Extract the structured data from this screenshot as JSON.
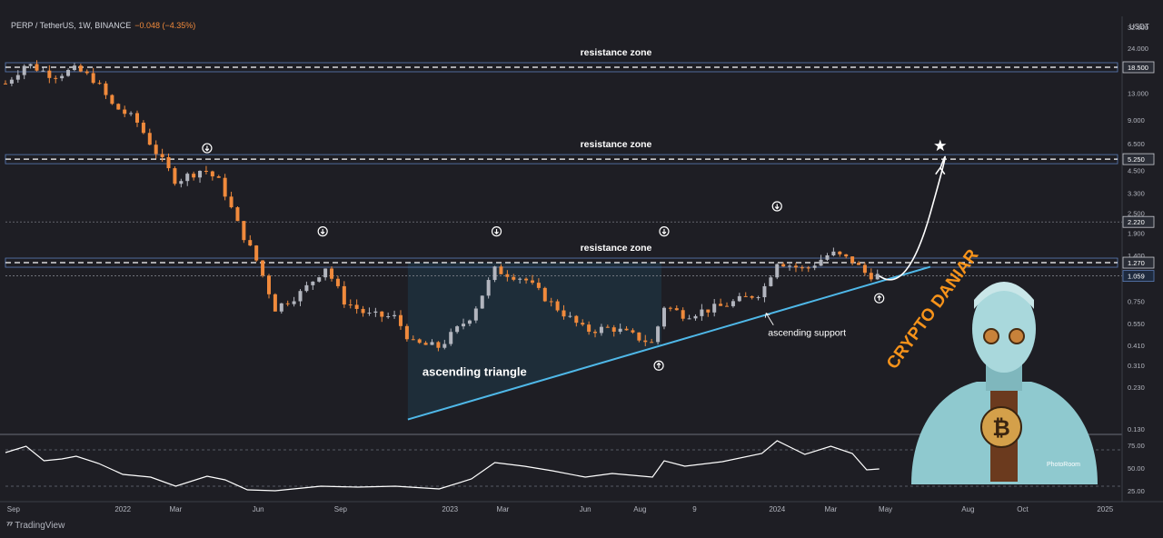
{
  "header": {
    "symbol": "PERP / TetherUS, 1W, BINANCE",
    "change": "−0.048 (−4.35%)"
  },
  "currency": "USDT",
  "branding": {
    "tradingview": "TradingView",
    "logo_icon": "tradingview-logo-icon",
    "author": "CRYPTO DANIAR",
    "watermark": "PhotoRoom"
  },
  "colors": {
    "background": "#1e1e24",
    "up_candle": "#b2b5be",
    "down_candle": "#f08a3c",
    "trendline": "#4fb8e8",
    "zone_line": "#ffffff",
    "triangle_fill": "#1f3a4a"
  },
  "chart_data": {
    "type": "candlestick",
    "scale": "log",
    "ylim": [
      0.13,
      32
    ],
    "xlim": [
      "2021-08-23",
      "2025-01-20"
    ],
    "y_ticks": [
      "32.000",
      "24.000",
      "18.500",
      "13.000",
      "9.000",
      "6.500",
      "5.250",
      "4.500",
      "3.300",
      "2.500",
      "2.220",
      "1.900",
      "1.400",
      "1.270",
      "1.059",
      "0.750",
      "0.550",
      "0.410",
      "0.310",
      "0.230",
      "0.130"
    ],
    "y_tick_values": [
      32,
      24,
      18.5,
      13,
      9,
      6.5,
      5.25,
      4.5,
      3.3,
      2.5,
      2.22,
      1.9,
      1.4,
      1.27,
      1.059,
      0.75,
      0.55,
      0.41,
      0.31,
      0.23,
      0.13
    ],
    "highlighted_ticks": [
      "18.500",
      "5.250",
      "2.220",
      "1.270",
      "1.059"
    ],
    "x_ticks": [
      {
        "label": "Sep",
        "date": "2021-09-01"
      },
      {
        "label": "2022",
        "date": "2022-01-01"
      },
      {
        "label": "Mar",
        "date": "2022-03-01"
      },
      {
        "label": "Jun",
        "date": "2022-06-01"
      },
      {
        "label": "Sep",
        "date": "2022-09-01"
      },
      {
        "label": "2023",
        "date": "2023-01-01"
      },
      {
        "label": "Mar",
        "date": "2023-03-01"
      },
      {
        "label": "Jun",
        "date": "2023-06-01"
      },
      {
        "label": "Aug",
        "date": "2023-08-01"
      },
      {
        "label": "9",
        "date": "2023-10-01"
      },
      {
        "label": "2024",
        "date": "2024-01-01"
      },
      {
        "label": "Mar",
        "date": "2024-03-01"
      },
      {
        "label": "May",
        "date": "2024-05-01"
      },
      {
        "label": "Aug",
        "date": "2024-08-01"
      },
      {
        "label": "Oct",
        "date": "2024-10-01"
      },
      {
        "label": "2025",
        "date": "2025-01-01"
      }
    ],
    "price_path": [
      [
        "2021-08-23",
        14.8
      ],
      [
        "2021-09-15",
        19.5
      ],
      [
        "2021-10-15",
        16.5
      ],
      [
        "2021-11-10",
        18.0
      ],
      [
        "2021-12-01",
        15.5
      ],
      [
        "2021-12-20",
        11.0
      ],
      [
        "2022-01-15",
        9.0
      ],
      [
        "2022-02-05",
        6.0
      ],
      [
        "2022-03-01",
        3.9
      ],
      [
        "2022-04-01",
        4.6
      ],
      [
        "2022-04-20",
        3.8
      ],
      [
        "2022-05-10",
        2.1
      ],
      [
        "2022-06-01",
        1.25
      ],
      [
        "2022-06-20",
        0.68
      ],
      [
        "2022-07-20",
        0.85
      ],
      [
        "2022-08-15",
        1.2
      ],
      [
        "2022-09-05",
        0.75
      ],
      [
        "2022-10-01",
        0.62
      ],
      [
        "2022-11-01",
        0.6
      ],
      [
        "2022-11-20",
        0.42
      ],
      [
        "2022-12-20",
        0.4
      ],
      [
        "2023-01-25",
        0.62
      ],
      [
        "2023-02-20",
        1.15
      ],
      [
        "2023-03-25",
        1.02
      ],
      [
        "2023-04-25",
        0.72
      ],
      [
        "2023-06-01",
        0.5
      ],
      [
        "2023-07-01",
        0.52
      ],
      [
        "2023-08-15",
        0.42
      ],
      [
        "2023-08-28",
        0.7
      ],
      [
        "2023-09-20",
        0.62
      ],
      [
        "2023-11-01",
        0.7
      ],
      [
        "2023-12-15",
        0.85
      ],
      [
        "2024-01-01",
        1.3
      ],
      [
        "2024-02-01",
        1.15
      ],
      [
        "2024-03-01",
        1.45
      ],
      [
        "2024-03-25",
        1.3
      ],
      [
        "2024-04-10",
        1.08
      ],
      [
        "2024-04-24",
        1.06
      ]
    ],
    "resistance_zones": [
      {
        "label": "resistance zone",
        "level": 18.5
      },
      {
        "label": "resistance zone",
        "level": 5.25
      },
      {
        "label": "resistance zone",
        "level": 1.27
      }
    ],
    "dashed_levels": [
      2.22,
      1.059
    ],
    "pattern": {
      "label": "ascending triangle",
      "trendline": [
        [
          "2022-11-15",
          0.148
        ],
        [
          "2024-06-20",
          1.2
        ]
      ],
      "box_top": 1.27,
      "box_start": "2022-11-15",
      "box_end": "2023-08-25"
    },
    "annotations": [
      {
        "text": "ascending support",
        "date": "2024-01-01",
        "value": 0.52
      },
      {
        "text": "",
        "icon": "down-arrow-circle-icon",
        "date": "2022-04-05",
        "value": 6.1
      },
      {
        "text": "",
        "icon": "down-arrow-circle-icon",
        "date": "2022-08-12",
        "value": 1.95
      },
      {
        "text": "",
        "icon": "down-arrow-circle-icon",
        "date": "2023-02-22",
        "value": 1.95
      },
      {
        "text": "",
        "icon": "down-arrow-circle-icon",
        "date": "2023-08-28",
        "value": 1.95
      },
      {
        "text": "",
        "icon": "down-arrow-circle-icon",
        "date": "2024-01-01",
        "value": 2.75
      },
      {
        "text": "",
        "icon": "up-arrow-circle-icon",
        "date": "2023-08-22",
        "value": 0.31
      },
      {
        "text": "",
        "icon": "up-arrow-circle-icon",
        "date": "2024-04-24",
        "value": 0.78
      },
      {
        "text": "",
        "icon": "star-icon",
        "date": "2024-07-01",
        "value": 6.3
      }
    ],
    "projection": [
      [
        "2024-04-24",
        1.06
      ],
      [
        "2024-05-25",
        1.1
      ],
      [
        "2024-06-20",
        2.5
      ],
      [
        "2024-07-01",
        4.6
      ]
    ],
    "oscillator": {
      "y_ticks": [
        "75.00",
        "50.00",
        "25.00"
      ],
      "y_tick_values": [
        75,
        50,
        25
      ],
      "guide_levels": [
        70,
        30
      ],
      "path": [
        [
          "2021-08-23",
          67
        ],
        [
          "2021-09-15",
          74
        ],
        [
          "2021-10-05",
          58
        ],
        [
          "2021-10-25",
          60
        ],
        [
          "2021-11-10",
          63
        ],
        [
          "2021-12-05",
          55
        ],
        [
          "2022-01-01",
          43
        ],
        [
          "2022-02-01",
          40
        ],
        [
          "2022-03-01",
          30
        ],
        [
          "2022-04-05",
          41
        ],
        [
          "2022-04-25",
          37
        ],
        [
          "2022-05-20",
          26
        ],
        [
          "2022-06-20",
          25
        ],
        [
          "2022-08-10",
          30
        ],
        [
          "2022-09-20",
          29
        ],
        [
          "2022-11-01",
          30
        ],
        [
          "2022-12-20",
          27
        ],
        [
          "2023-01-25",
          38
        ],
        [
          "2023-02-20",
          56
        ],
        [
          "2023-03-25",
          52
        ],
        [
          "2023-04-25",
          47
        ],
        [
          "2023-06-01",
          40
        ],
        [
          "2023-07-01",
          44
        ],
        [
          "2023-08-15",
          40
        ],
        [
          "2023-08-28",
          58
        ],
        [
          "2023-09-20",
          52
        ],
        [
          "2023-11-01",
          57
        ],
        [
          "2023-12-15",
          66
        ],
        [
          "2024-01-01",
          80
        ],
        [
          "2024-02-01",
          65
        ],
        [
          "2024-03-01",
          74
        ],
        [
          "2024-03-25",
          66
        ],
        [
          "2024-04-10",
          48
        ],
        [
          "2024-04-24",
          49
        ]
      ]
    }
  }
}
